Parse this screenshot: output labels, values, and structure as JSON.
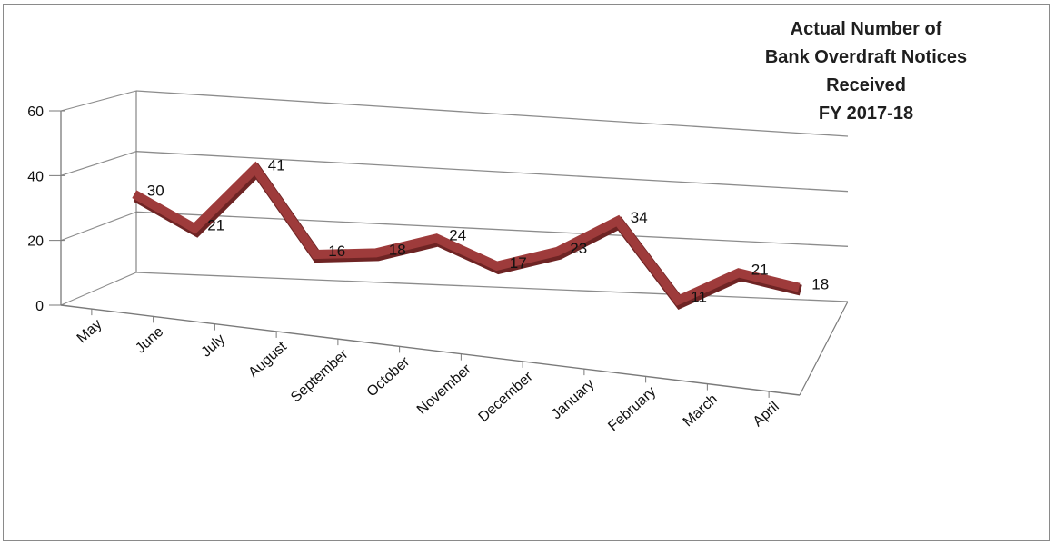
{
  "chart_data": {
    "type": "line",
    "title_lines": [
      "Actual Number of",
      "Bank Overdraft Notices",
      "Received",
      "FY 2017-18"
    ],
    "categories": [
      "May",
      "June",
      "July",
      "August",
      "September",
      "October",
      "November",
      "December",
      "January",
      "February",
      "March",
      "April"
    ],
    "values": [
      30,
      21,
      41,
      16,
      18,
      24,
      17,
      23,
      34,
      11,
      21,
      18
    ],
    "y_ticks": [
      "0",
      "20",
      "40",
      "60"
    ],
    "ylim": [
      0,
      60
    ],
    "grid": true,
    "style": "3d-line",
    "colors": {
      "line": "#9e3b3b",
      "line_shadow": "#6e2424",
      "grid": "#8c8c8c",
      "axis": "#7a7a7a"
    }
  }
}
